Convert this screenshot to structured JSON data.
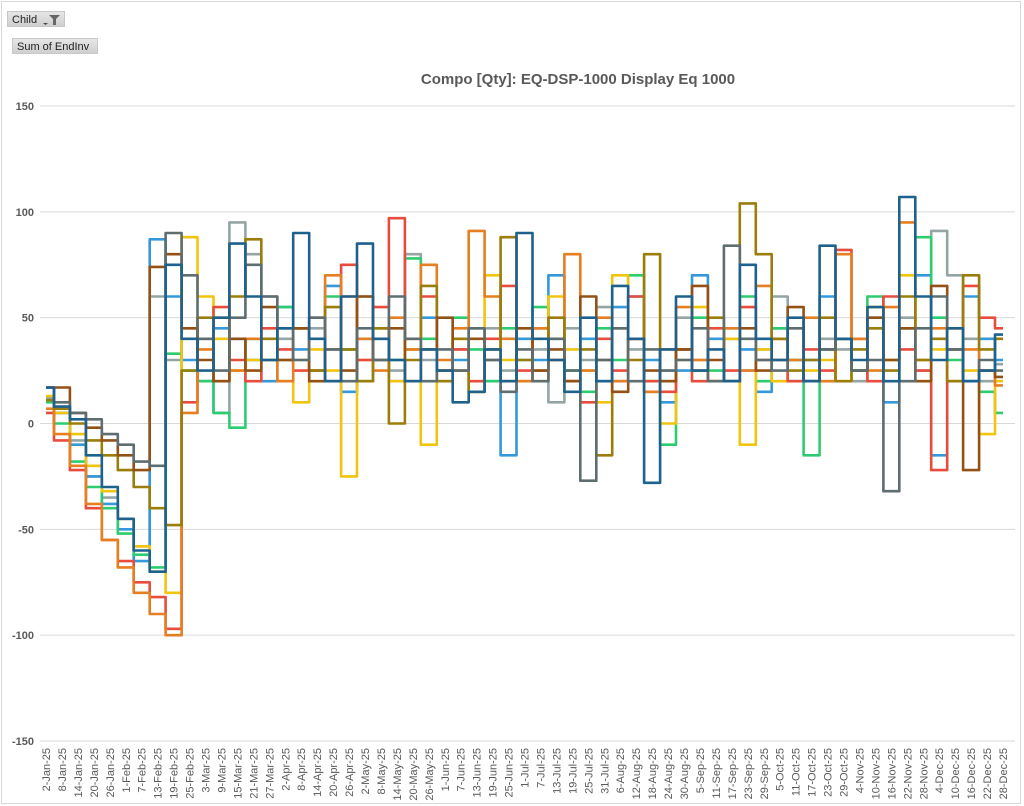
{
  "pivot": {
    "field_button": "Child",
    "value_button": "Sum of EndInv"
  },
  "chart_data": {
    "type": "line",
    "title": "Compo [Qty]: EQ-DSP-1000 Display Eq 1000",
    "xlabel": "",
    "ylabel": "",
    "ylim": [
      -150,
      150
    ],
    "yticks": [
      150,
      100,
      50,
      0,
      -50,
      -100,
      -150
    ],
    "grid": true,
    "legend": "none",
    "x": [
      "2-Jan-25",
      "8-Jan-25",
      "14-Jan-25",
      "20-Jan-25",
      "26-Jan-25",
      "1-Feb-25",
      "7-Feb-25",
      "13-Feb-25",
      "19-Feb-25",
      "25-Feb-25",
      "3-Mar-25",
      "9-Mar-25",
      "15-Mar-25",
      "21-Mar-25",
      "27-Mar-25",
      "2-Apr-25",
      "8-Apr-25",
      "14-Apr-25",
      "20-Apr-25",
      "26-Apr-25",
      "2-May-25",
      "8-May-25",
      "14-May-25",
      "20-May-25",
      "26-May-25",
      "1-Jun-25",
      "7-Jun-25",
      "13-Jun-25",
      "19-Jun-25",
      "25-Jun-25",
      "1-Jul-25",
      "7-Jul-25",
      "13-Jul-25",
      "19-Jul-25",
      "25-Jul-25",
      "31-Jul-25",
      "6-Aug-25",
      "12-Aug-25",
      "18-Aug-25",
      "24-Aug-25",
      "30-Aug-25",
      "5-Sep-25",
      "11-Sep-25",
      "17-Sep-25",
      "23-Sep-25",
      "29-Sep-25",
      "5-Oct-25",
      "11-Oct-25",
      "17-Oct-25",
      "23-Oct-25",
      "29-Oct-25",
      "4-Nov-25",
      "10-Nov-25",
      "16-Nov-25",
      "22-Nov-25",
      "28-Nov-25",
      "4-Dec-25",
      "10-Dec-25",
      "16-Dec-25",
      "22-Dec-25",
      "28-Dec-25"
    ],
    "series": [
      {
        "color": "#95A5A6",
        "values": [
          12,
          5,
          -8,
          -25,
          -35,
          -45,
          -58,
          60,
          30,
          45,
          20,
          5,
          95,
          80,
          60,
          40,
          30,
          45,
          20,
          35,
          60,
          40,
          25,
          80,
          30,
          20,
          35,
          15,
          45,
          25,
          20,
          35,
          10,
          45,
          30,
          55,
          20,
          35,
          15,
          25,
          50,
          30,
          20,
          45,
          25,
          35,
          60,
          30,
          20,
          40,
          35,
          20,
          45,
          30,
          50,
          25,
          91,
          70,
          40,
          20,
          28
        ]
      },
      {
        "color": "#3498DB",
        "values": [
          17,
          5,
          -10,
          -25,
          -38,
          -50,
          -65,
          87,
          60,
          30,
          20,
          45,
          40,
          30,
          20,
          55,
          35,
          25,
          65,
          15,
          40,
          30,
          20,
          35,
          50,
          25,
          30,
          45,
          20,
          -15,
          40,
          30,
          70,
          25,
          40,
          20,
          55,
          60,
          30,
          10,
          25,
          70,
          40,
          20,
          35,
          15,
          45,
          20,
          30,
          60,
          40,
          25,
          50,
          10,
          45,
          70,
          -15,
          35,
          60,
          40,
          30
        ]
      },
      {
        "color": "#2ECC71",
        "values": [
          10,
          0,
          -18,
          -30,
          -40,
          -52,
          -62,
          -68,
          33,
          25,
          20,
          5,
          -2,
          40,
          30,
          55,
          45,
          25,
          60,
          35,
          20,
          45,
          30,
          78,
          40,
          25,
          50,
          35,
          20,
          45,
          30,
          55,
          40,
          25,
          15,
          45,
          30,
          70,
          20,
          -10,
          35,
          50,
          25,
          40,
          60,
          20,
          45,
          30,
          -15,
          35,
          40,
          25,
          60,
          30,
          45,
          88,
          50,
          30,
          20,
          15,
          5
        ]
      },
      {
        "color": "#F1C40F",
        "values": [
          13,
          5,
          -5,
          -20,
          -32,
          -45,
          -58,
          -70,
          -80,
          88,
          60,
          40,
          25,
          30,
          45,
          20,
          10,
          35,
          25,
          -25,
          30,
          45,
          20,
          35,
          -10,
          25,
          40,
          15,
          70,
          30,
          45,
          20,
          60,
          35,
          25,
          10,
          70,
          40,
          20,
          0,
          30,
          55,
          20,
          40,
          -10,
          35,
          20,
          45,
          25,
          30,
          20,
          40,
          55,
          30,
          70,
          20,
          35,
          45,
          25,
          -5,
          20
        ]
      },
      {
        "color": "#E74C3C",
        "values": [
          5,
          -8,
          -22,
          -40,
          -55,
          -65,
          -75,
          -82,
          -97,
          10,
          40,
          55,
          30,
          20,
          45,
          35,
          25,
          50,
          20,
          75,
          30,
          55,
          97,
          40,
          60,
          25,
          35,
          20,
          40,
          65,
          25,
          45,
          30,
          20,
          10,
          40,
          25,
          60,
          20,
          15,
          35,
          20,
          45,
          25,
          55,
          30,
          40,
          20,
          35,
          25,
          82,
          40,
          20,
          60,
          35,
          25,
          -22,
          45,
          65,
          50,
          45
        ]
      },
      {
        "color": "#E67E22",
        "values": [
          7,
          -5,
          -20,
          -38,
          -55,
          -68,
          -80,
          -90,
          -100,
          5,
          35,
          50,
          25,
          40,
          30,
          20,
          45,
          25,
          70,
          60,
          40,
          25,
          50,
          35,
          75,
          30,
          45,
          91,
          60,
          40,
          20,
          45,
          30,
          80,
          25,
          50,
          20,
          40,
          15,
          35,
          55,
          30,
          20,
          45,
          25,
          65,
          40,
          30,
          50,
          20,
          80,
          40,
          25,
          55,
          95,
          30,
          45,
          20,
          35,
          25,
          18
        ]
      },
      {
        "color": "#9A7D0A",
        "values": [
          11,
          7,
          0,
          -8,
          -15,
          -22,
          -30,
          -40,
          -48,
          25,
          50,
          20,
          60,
          87,
          40,
          30,
          45,
          25,
          55,
          35,
          20,
          45,
          0,
          30,
          65,
          20,
          40,
          15,
          35,
          88,
          30,
          25,
          50,
          20,
          35,
          -15,
          45,
          30,
          80,
          20,
          35,
          25,
          50,
          20,
          104,
          80,
          40,
          25,
          30,
          50,
          20,
          35,
          45,
          25,
          60,
          30,
          40,
          20,
          70,
          35,
          40
        ]
      },
      {
        "color": "#935116",
        "values": [
          17,
          17,
          5,
          -2,
          -8,
          -15,
          -22,
          74,
          80,
          45,
          30,
          20,
          40,
          25,
          55,
          30,
          45,
          20,
          35,
          25,
          60,
          30,
          45,
          20,
          35,
          50,
          25,
          40,
          30,
          20,
          45,
          25,
          35,
          20,
          60,
          30,
          15,
          40,
          25,
          20,
          35,
          65,
          30,
          20,
          45,
          25,
          30,
          55,
          20,
          35,
          40,
          25,
          50,
          30,
          45,
          20,
          65,
          35,
          -22,
          25,
          22
        ]
      },
      {
        "color": "#5D6D70",
        "values": [
          17,
          10,
          5,
          2,
          -5,
          -10,
          -18,
          -20,
          90,
          70,
          40,
          25,
          50,
          75,
          60,
          45,
          30,
          50,
          35,
          20,
          45,
          30,
          60,
          40,
          20,
          35,
          25,
          45,
          30,
          15,
          35,
          20,
          40,
          25,
          -27,
          30,
          45,
          20,
          35,
          25,
          30,
          45,
          20,
          84,
          40,
          30,
          25,
          45,
          20,
          35,
          40,
          25,
          30,
          -32,
          20,
          45,
          60,
          35,
          20,
          30,
          25
        ]
      },
      {
        "color": "#1F618D",
        "values": [
          17,
          8,
          2,
          -15,
          -30,
          -45,
          -60,
          -70,
          75,
          40,
          25,
          50,
          85,
          60,
          30,
          45,
          90,
          40,
          20,
          60,
          85,
          40,
          30,
          20,
          35,
          25,
          10,
          15,
          35,
          20,
          90,
          40,
          30,
          15,
          50,
          20,
          65,
          40,
          -28,
          35,
          60,
          25,
          35,
          20,
          75,
          40,
          30,
          50,
          20,
          84,
          40,
          30,
          55,
          20,
          107,
          60,
          30,
          45,
          20,
          25,
          42
        ]
      }
    ]
  }
}
